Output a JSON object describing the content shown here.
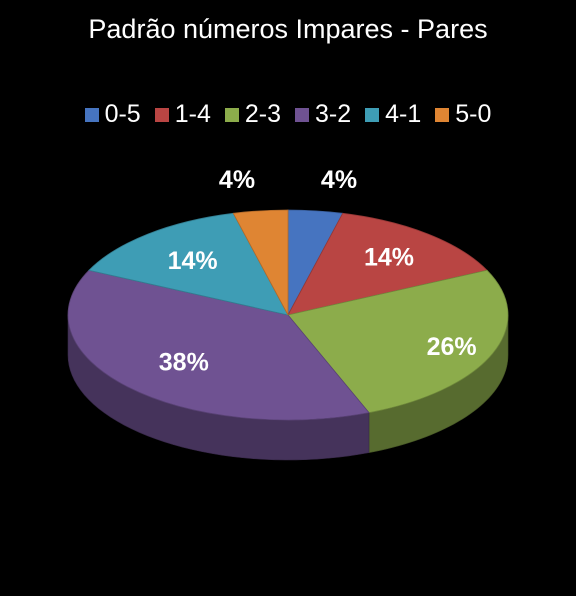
{
  "chart_data": {
    "type": "pie",
    "title": "Padrão números Impares - Pares",
    "categories": [
      "0-5",
      "1-4",
      "2-3",
      "3-2",
      "4-1",
      "5-0"
    ],
    "values": [
      4,
      14,
      26,
      38,
      14,
      4
    ],
    "data_labels": [
      "4%",
      "14%",
      "26%",
      "38%",
      "14%",
      "4%"
    ],
    "colors": [
      "#4674C0",
      "#B94543",
      "#8CAC4B",
      "#6F5292",
      "#3E9DB5",
      "#DF8533"
    ],
    "legend_position": "top",
    "style": "3d"
  }
}
